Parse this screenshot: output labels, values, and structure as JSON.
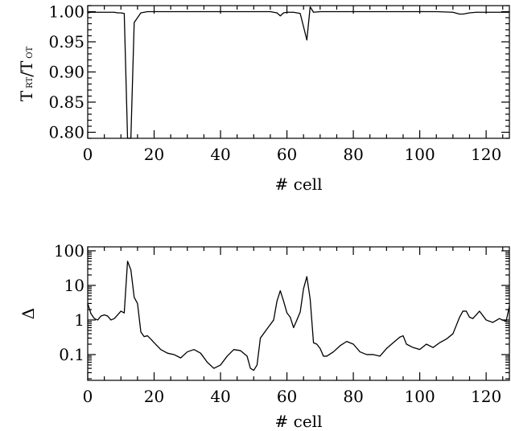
{
  "chart_data": [
    {
      "type": "line",
      "xlabel": "# cell",
      "ylabel": "T RT/T OT",
      "ylabel_parts": {
        "main1": "T",
        "sub1": "RT",
        "sep": "/",
        "main2": "T",
        "sub2": "OT"
      },
      "xlim": [
        0,
        127
      ],
      "ylim": [
        0.79,
        1.01
      ],
      "xticks": [
        0,
        20,
        40,
        60,
        80,
        100,
        120
      ],
      "xtick_labels": [
        "0",
        "20",
        "40",
        "60",
        "80",
        "100",
        "120"
      ],
      "yticks": [
        0.8,
        0.85,
        0.9,
        0.95,
        1.0
      ],
      "ytick_labels": [
        "0.80",
        "0.85",
        "0.90",
        "0.95",
        "1.00"
      ],
      "series": [
        {
          "x": [
            0,
            1,
            2,
            3,
            4,
            5,
            6,
            7,
            8,
            9,
            10,
            11,
            12,
            13,
            14,
            15,
            16,
            17,
            18,
            20,
            25,
            30,
            35,
            40,
            45,
            50,
            55,
            57,
            58,
            59,
            60,
            62,
            64,
            65,
            66,
            67,
            68,
            70,
            75,
            80,
            85,
            90,
            95,
            100,
            105,
            110,
            112,
            113,
            115,
            117,
            120,
            125,
            127
          ],
          "y": [
            0.998,
            0.999,
            0.999,
            0.999,
            0.999,
            0.999,
            0.999,
            0.999,
            0.999,
            0.998,
            0.998,
            0.997,
            0.78,
            0.79,
            0.982,
            0.99,
            0.998,
            0.999,
            1.0,
            1.0,
            1.0,
            1.0,
            1.0,
            1.0,
            1.0,
            1.0,
            1.0,
            0.998,
            0.993,
            0.998,
            0.999,
            0.999,
            0.997,
            0.975,
            0.953,
            1.008,
            0.999,
            1.0,
            1.0,
            1.0,
            1.0,
            1.0,
            1.0,
            1.0,
            1.0,
            0.999,
            0.996,
            0.996,
            0.998,
            0.999,
            0.999,
            0.999,
            0.999
          ]
        }
      ]
    },
    {
      "type": "line",
      "xlabel": "# cell",
      "ylabel": "Δ",
      "yscale": "log",
      "xlim": [
        0,
        127
      ],
      "ylim": [
        0.018,
        130
      ],
      "xticks": [
        0,
        20,
        40,
        60,
        80,
        100,
        120
      ],
      "xtick_labels": [
        "0",
        "20",
        "40",
        "60",
        "80",
        "100",
        "120"
      ],
      "yticks": [
        0.1,
        1,
        10,
        100
      ],
      "ytick_labels": [
        "0.1",
        "1",
        "10",
        "100"
      ],
      "series": [
        {
          "x": [
            0,
            1,
            2,
            3,
            4,
            5,
            6,
            7,
            8,
            9,
            10,
            11,
            12,
            13,
            14,
            15,
            16,
            17,
            18,
            19,
            20,
            22,
            24,
            26,
            28,
            30,
            32,
            34,
            36,
            38,
            40,
            42,
            44,
            46,
            48,
            49,
            50,
            51,
            52,
            54,
            56,
            57,
            58,
            59,
            60,
            61,
            62,
            63,
            64,
            65,
            66,
            67,
            68,
            69,
            70,
            71,
            72,
            74,
            76,
            78,
            80,
            82,
            84,
            86,
            88,
            90,
            92,
            94,
            95,
            96,
            98,
            100,
            102,
            104,
            106,
            108,
            110,
            112,
            113,
            114,
            115,
            116,
            118,
            120,
            122,
            124,
            126,
            127
          ],
          "y": [
            3.0,
            1.5,
            1.1,
            1.0,
            1.3,
            1.4,
            1.3,
            1.0,
            1.1,
            1.4,
            1.8,
            1.6,
            50,
            28,
            4.5,
            3.0,
            0.45,
            0.33,
            0.35,
            0.28,
            0.22,
            0.14,
            0.11,
            0.1,
            0.08,
            0.12,
            0.14,
            0.11,
            0.06,
            0.04,
            0.05,
            0.09,
            0.14,
            0.13,
            0.09,
            0.04,
            0.035,
            0.05,
            0.3,
            0.55,
            1.0,
            3.5,
            7.0,
            3.5,
            1.6,
            1.2,
            0.6,
            1.0,
            1.7,
            8.0,
            18,
            4.0,
            0.22,
            0.2,
            0.15,
            0.09,
            0.09,
            0.12,
            0.18,
            0.24,
            0.2,
            0.12,
            0.1,
            0.1,
            0.09,
            0.15,
            0.22,
            0.32,
            0.35,
            0.2,
            0.16,
            0.14,
            0.2,
            0.16,
            0.22,
            0.28,
            0.4,
            1.2,
            1.8,
            1.8,
            1.2,
            1.1,
            1.8,
            1.0,
            0.85,
            1.1,
            0.9,
            2.5
          ]
        }
      ]
    }
  ]
}
